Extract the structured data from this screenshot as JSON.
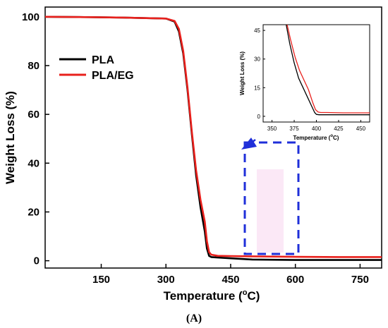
{
  "caption": "(A)",
  "chart_data": [
    {
      "type": "line",
      "xlabel": "Temperature (",
      "xlabel_sup": "o",
      "xlabel_tail": "C)",
      "ylabel": "Weight Loss (%)",
      "xlim": [
        20,
        800
      ],
      "ylim": [
        -3,
        104
      ],
      "xticks": [
        150,
        300,
        450,
        600,
        750
      ],
      "yticks": [
        0,
        20,
        40,
        60,
        80,
        100
      ],
      "legend_placement": "upper-left",
      "series": [
        {
          "name": "PLA",
          "color": "#000000",
          "x": [
            20,
            100,
            200,
            300,
            320,
            330,
            340,
            350,
            360,
            370,
            380,
            390,
            395,
            400,
            405,
            420,
            450,
            500,
            600,
            700,
            800
          ],
          "y": [
            100,
            99.9,
            99.7,
            99.3,
            98,
            94,
            85,
            70,
            52,
            35,
            22,
            12,
            5,
            2,
            1.5,
            1.3,
            1.0,
            0.5,
            0.3,
            0.3,
            0.3
          ]
        },
        {
          "name": "PLA/EG",
          "color": "#e8201c",
          "x": [
            20,
            100,
            200,
            300,
            320,
            330,
            340,
            350,
            360,
            370,
            380,
            390,
            395,
            400,
            405,
            420,
            450,
            500,
            600,
            700,
            800
          ],
          "y": [
            100,
            99.9,
            99.7,
            99.3,
            98.3,
            95,
            86,
            71,
            53,
            37,
            25,
            16,
            8,
            3.5,
            2.5,
            2.0,
            1.9,
            1.8,
            1.6,
            1.5,
            1.5
          ]
        }
      ]
    },
    {
      "type": "line",
      "xlabel": "Temperature (",
      "xlabel_sup": "o",
      "xlabel_tail": "C)",
      "ylabel": "Weight Loss (%)",
      "xlim": [
        340,
        460
      ],
      "ylim": [
        -3,
        48
      ],
      "xticks": [
        350,
        375,
        400,
        425,
        450
      ],
      "yticks": [
        0,
        15,
        30,
        45
      ],
      "series": [
        {
          "name": "PLA",
          "color": "#000000",
          "x": [
            366,
            370,
            375,
            380,
            385,
            390,
            395,
            398,
            400,
            403,
            410,
            430,
            460
          ],
          "y": [
            48,
            38,
            28,
            20,
            15,
            10,
            5,
            2,
            1,
            0.8,
            0.8,
            0.8,
            0.8
          ]
        },
        {
          "name": "PLA/EG",
          "color": "#e8201c",
          "x": [
            367,
            371,
            376,
            381,
            386,
            391,
            396,
            399,
            402,
            405,
            412,
            430,
            460
          ],
          "y": [
            48,
            40,
            31,
            24,
            19,
            14,
            7,
            3.5,
            2.2,
            2.0,
            2.0,
            1.8,
            1.8
          ]
        }
      ]
    }
  ]
}
